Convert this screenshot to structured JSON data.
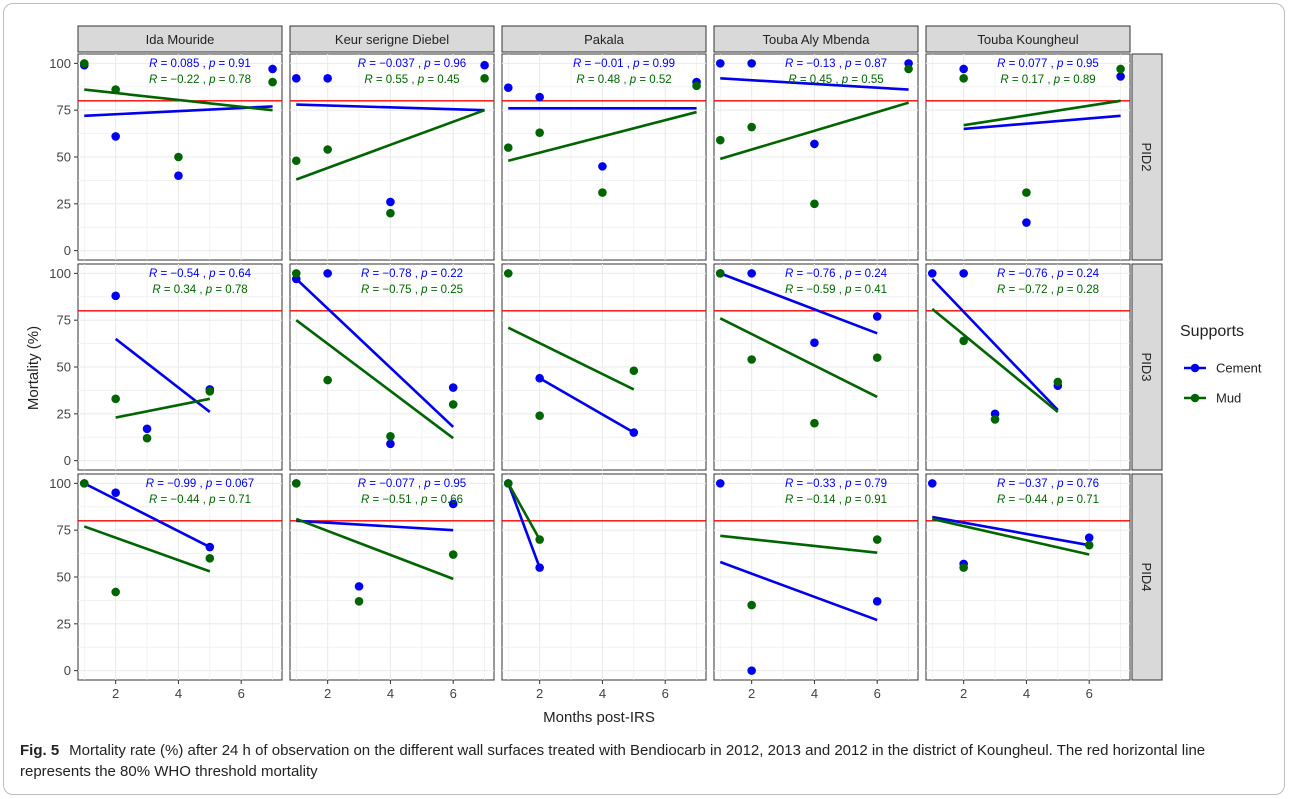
{
  "caption": {
    "label": "Fig. 5",
    "text": "Mortality rate (%) after 24 h of observation on the different wall surfaces treated with Bendiocarb in 2012, 2013 and 2012 in the district of Koungheul. The red horizontal line represents the 80% WHO threshold mortality"
  },
  "colors": {
    "cement": "#0000ee",
    "mud": "#006400",
    "threshold": "#ff0000",
    "strip_bg": "#d9d9d9",
    "grid": "#ebebeb"
  },
  "chart_data": {
    "type": "scatter",
    "xlabel": "Months post-IRS",
    "ylabel": "Mortality (%)",
    "x_ticks": [
      2,
      4,
      6
    ],
    "y_ticks": [
      0,
      25,
      50,
      75,
      100
    ],
    "xlim": [
      0.8,
      7.3
    ],
    "ylim": [
      -5,
      105
    ],
    "threshold": 80,
    "grid": true,
    "legend": {
      "title": "Supports",
      "position": "right",
      "items": [
        {
          "key": "cement",
          "label": "Cement",
          "color": "#0000ee"
        },
        {
          "key": "mud",
          "label": "Mud",
          "color": "#006400"
        }
      ]
    },
    "columns": [
      "Ida Mouride",
      "Keur serigne Diebel",
      "Pakala",
      "Touba Aly Mbenda",
      "Touba Koungheul"
    ],
    "rows": [
      "PID2",
      "PID3",
      "PID4"
    ],
    "panels": [
      {
        "row": 0,
        "col": 0,
        "cement": {
          "points": [
            [
              1,
              99
            ],
            [
              2,
              61
            ],
            [
              4,
              40
            ],
            [
              7,
              97
            ]
          ],
          "fit": [
            [
              1,
              72
            ],
            [
              7,
              77
            ]
          ],
          "r": "0.085",
          "p": "0.91"
        },
        "mud": {
          "points": [
            [
              1,
              100
            ],
            [
              2,
              86
            ],
            [
              4,
              50
            ],
            [
              7,
              90
            ]
          ],
          "fit": [
            [
              1,
              86
            ],
            [
              7,
              75
            ]
          ],
          "r": "−0.22",
          "p": "0.78"
        }
      },
      {
        "row": 0,
        "col": 1,
        "cement": {
          "points": [
            [
              1,
              92
            ],
            [
              2,
              92
            ],
            [
              4,
              26
            ],
            [
              7,
              99
            ]
          ],
          "fit": [
            [
              1,
              78
            ],
            [
              7,
              75
            ]
          ],
          "r": "−0.037",
          "p": "0.96"
        },
        "mud": {
          "points": [
            [
              1,
              48
            ],
            [
              2,
              54
            ],
            [
              4,
              20
            ],
            [
              7,
              92
            ]
          ],
          "fit": [
            [
              1,
              38
            ],
            [
              7,
              75
            ]
          ],
          "r": "0.55",
          "p": "0.45"
        }
      },
      {
        "row": 0,
        "col": 2,
        "cement": {
          "points": [
            [
              1,
              87
            ],
            [
              2,
              82
            ],
            [
              4,
              45
            ],
            [
              7,
              90
            ]
          ],
          "fit": [
            [
              1,
              76
            ],
            [
              7,
              76
            ]
          ],
          "r": "−0.01",
          "p": "0.99"
        },
        "mud": {
          "points": [
            [
              1,
              55
            ],
            [
              2,
              63
            ],
            [
              4,
              31
            ],
            [
              7,
              88
            ]
          ],
          "fit": [
            [
              1,
              48
            ],
            [
              7,
              74
            ]
          ],
          "r": "0.48",
          "p": "0.52"
        }
      },
      {
        "row": 0,
        "col": 3,
        "cement": {
          "points": [
            [
              1,
              100
            ],
            [
              2,
              100
            ],
            [
              4,
              57
            ],
            [
              7,
              100
            ]
          ],
          "fit": [
            [
              1,
              92
            ],
            [
              7,
              86
            ]
          ],
          "r": "−0.13",
          "p": "0.87"
        },
        "mud": {
          "points": [
            [
              1,
              59
            ],
            [
              2,
              66
            ],
            [
              4,
              25
            ],
            [
              7,
              97
            ]
          ],
          "fit": [
            [
              1,
              49
            ],
            [
              7,
              79
            ]
          ],
          "r": "0.45",
          "p": "0.55"
        }
      },
      {
        "row": 0,
        "col": 4,
        "cement": {
          "points": [
            [
              2,
              97
            ],
            [
              4,
              15
            ],
            [
              7,
              93
            ]
          ],
          "fit": [
            [
              2,
              65
            ],
            [
              7,
              72
            ]
          ],
          "r": "0.077",
          "p": "0.95"
        },
        "mud": {
          "points": [
            [
              2,
              92
            ],
            [
              4,
              31
            ],
            [
              7,
              97
            ]
          ],
          "fit": [
            [
              2,
              67
            ],
            [
              7,
              80
            ]
          ],
          "r": "0.17",
          "p": "0.89"
        }
      },
      {
        "row": 1,
        "col": 0,
        "cement": {
          "points": [
            [
              2,
              88
            ],
            [
              3,
              17
            ],
            [
              5,
              38
            ]
          ],
          "fit": [
            [
              2,
              65
            ],
            [
              5,
              26
            ]
          ],
          "r": "−0.54",
          "p": "0.64"
        },
        "mud": {
          "points": [
            [
              2,
              33
            ],
            [
              3,
              12
            ],
            [
              5,
              37
            ]
          ],
          "fit": [
            [
              2,
              23
            ],
            [
              5,
              33
            ]
          ],
          "r": "0.34",
          "p": "0.78"
        }
      },
      {
        "row": 1,
        "col": 1,
        "cement": {
          "points": [
            [
              1,
              97
            ],
            [
              2,
              100
            ],
            [
              4,
              9
            ],
            [
              6,
              39
            ]
          ],
          "fit": [
            [
              1,
              97
            ],
            [
              6,
              18
            ]
          ],
          "r": "−0.78",
          "p": "0.22"
        },
        "mud": {
          "points": [
            [
              1,
              100
            ],
            [
              2,
              43
            ],
            [
              4,
              13
            ],
            [
              6,
              30
            ]
          ],
          "fit": [
            [
              1,
              75
            ],
            [
              6,
              12
            ]
          ],
          "r": "−0.75",
          "p": "0.25"
        }
      },
      {
        "row": 1,
        "col": 2,
        "cement": {
          "points": [
            [
              2,
              44
            ],
            [
              5,
              15
            ]
          ],
          "fit": [
            [
              2,
              44
            ],
            [
              5,
              15
            ]
          ],
          "r": "",
          "p": ""
        },
        "mud": {
          "points": [
            [
              1,
              100
            ],
            [
              2,
              24
            ],
            [
              5,
              48
            ]
          ],
          "fit": [
            [
              1,
              71
            ],
            [
              5,
              38
            ]
          ],
          "r": "",
          "p": ""
        }
      },
      {
        "row": 1,
        "col": 3,
        "cement": {
          "points": [
            [
              1,
              100
            ],
            [
              2,
              100
            ],
            [
              4,
              63
            ],
            [
              6,
              77
            ]
          ],
          "fit": [
            [
              1,
              100
            ],
            [
              6,
              68
            ]
          ],
          "r": "−0.76",
          "p": "0.24"
        },
        "mud": {
          "points": [
            [
              1,
              100
            ],
            [
              2,
              54
            ],
            [
              4,
              20
            ],
            [
              6,
              55
            ]
          ],
          "fit": [
            [
              1,
              76
            ],
            [
              6,
              34
            ]
          ],
          "r": "−0.59",
          "p": "0.41"
        }
      },
      {
        "row": 1,
        "col": 4,
        "cement": {
          "points": [
            [
              1,
              100
            ],
            [
              2,
              100
            ],
            [
              3,
              25
            ],
            [
              5,
              40
            ]
          ],
          "fit": [
            [
              1,
              97
            ],
            [
              5,
              27
            ]
          ],
          "r": "−0.76",
          "p": "0.24"
        },
        "mud": {
          "points": [
            [
              2,
              64
            ],
            [
              3,
              22
            ],
            [
              5,
              42
            ]
          ],
          "fit": [
            [
              1,
              81
            ],
            [
              5,
              26
            ]
          ],
          "r": "−0.72",
          "p": "0.28"
        }
      },
      {
        "row": 2,
        "col": 0,
        "cement": {
          "points": [
            [
              1,
              100
            ],
            [
              2,
              95
            ],
            [
              5,
              66
            ]
          ],
          "fit": [
            [
              1,
              100
            ],
            [
              5,
              66
            ]
          ],
          "r": "−0.99",
          "p": "0.067"
        },
        "mud": {
          "points": [
            [
              1,
              100
            ],
            [
              2,
              42
            ],
            [
              5,
              60
            ]
          ],
          "fit": [
            [
              1,
              77
            ],
            [
              5,
              53
            ]
          ],
          "r": "−0.44",
          "p": "0.71"
        }
      },
      {
        "row": 2,
        "col": 1,
        "cement": {
          "points": [
            [
              1,
              100
            ],
            [
              3,
              45
            ],
            [
              6,
              89
            ]
          ],
          "fit": [
            [
              1,
              80
            ],
            [
              6,
              75
            ]
          ],
          "r": "−0.077",
          "p": "0.95"
        },
        "mud": {
          "points": [
            [
              1,
              100
            ],
            [
              3,
              37
            ],
            [
              6,
              62
            ]
          ],
          "fit": [
            [
              1,
              81
            ],
            [
              6,
              49
            ]
          ],
          "r": "−0.51",
          "p": "0.66"
        }
      },
      {
        "row": 2,
        "col": 2,
        "cement": {
          "points": [
            [
              1,
              100
            ],
            [
              2,
              55
            ]
          ],
          "fit": [
            [
              1,
              100
            ],
            [
              2,
              55
            ]
          ],
          "r": "",
          "p": ""
        },
        "mud": {
          "points": [
            [
              1,
              100
            ],
            [
              2,
              70
            ]
          ],
          "fit": [
            [
              1,
              100
            ],
            [
              2,
              70
            ]
          ],
          "r": "",
          "p": ""
        }
      },
      {
        "row": 2,
        "col": 3,
        "cement": {
          "points": [
            [
              1,
              100
            ],
            [
              2,
              0
            ],
            [
              6,
              37
            ]
          ],
          "fit": [
            [
              1,
              58
            ],
            [
              6,
              27
            ]
          ],
          "r": "−0.33",
          "p": "0.79"
        },
        "mud": {
          "points": [
            [
              2,
              35
            ],
            [
              6,
              70
            ]
          ],
          "fit": [
            [
              1,
              72
            ],
            [
              6,
              63
            ]
          ],
          "r": "−0.14",
          "p": "0.91"
        }
      },
      {
        "row": 2,
        "col": 4,
        "cement": {
          "points": [
            [
              1,
              100
            ],
            [
              2,
              57
            ],
            [
              6,
              71
            ]
          ],
          "fit": [
            [
              1,
              82
            ],
            [
              6,
              67
            ]
          ],
          "r": "−0.37",
          "p": "0.76"
        },
        "mud": {
          "points": [
            [
              2,
              55
            ],
            [
              6,
              67
            ]
          ],
          "fit": [
            [
              1,
              81
            ],
            [
              6,
              62
            ]
          ],
          "r": "−0.44",
          "p": "0.71"
        }
      }
    ]
  }
}
